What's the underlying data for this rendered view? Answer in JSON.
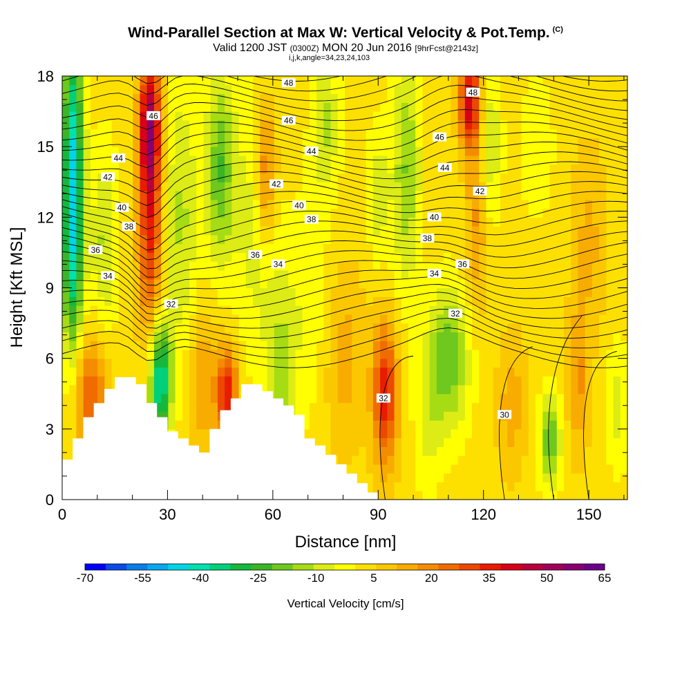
{
  "title": {
    "main": "Wind-Parallel Section at Max W: Vertical Velocity & Pot.Temp.",
    "copyright": "(C)",
    "valid_prefix": "Valid 1200 JST",
    "valid_utc": "(0300Z)",
    "valid_date": "MON 20 Jun 2016",
    "forecast": "[9hrFcst@2143z]",
    "indices": "i,j,k,angle=34,23,24,103"
  },
  "chart_data": {
    "type": "heatmap",
    "xlabel": "Distance [nm]",
    "ylabel": "Height [Kft MSL]",
    "xlim": [
      0,
      161
    ],
    "ylim": [
      0,
      18
    ],
    "x_ticks": [
      0,
      30,
      60,
      90,
      120,
      150
    ],
    "y_ticks": [
      0,
      3,
      6,
      9,
      12,
      15,
      18
    ],
    "colorbar": {
      "title": "Vertical Velocity [cm/s]",
      "tick_labels": [
        "-70",
        "-55",
        "-40",
        "-25",
        "-10",
        "5",
        "20",
        "35",
        "50",
        "65"
      ],
      "colors": [
        "#0000ff",
        "#0c4ae6",
        "#0a7de8",
        "#0aa6ee",
        "#00d4e6",
        "#00e0b0",
        "#00d07a",
        "#16b83c",
        "#3cb428",
        "#6ec81e",
        "#a6dc14",
        "#dcec14",
        "#ffff00",
        "#fde000",
        "#fbc800",
        "#f8ac00",
        "#f48c00",
        "#f06c00",
        "#ec4800",
        "#e81c00",
        "#d80018",
        "#b8003c",
        "#a0005a",
        "#880070",
        "#6c0088"
      ]
    },
    "velocity_updrafts": [
      {
        "x": 25,
        "z": 16,
        "w": 50
      },
      {
        "x": 92,
        "z": 4.5,
        "w": 35
      },
      {
        "x": 116,
        "z": 17,
        "w": 40
      },
      {
        "x": 47,
        "z": 4.5,
        "w": 35
      },
      {
        "x": 58,
        "z": 14,
        "w": 25
      }
    ],
    "velocity_downdrafts": [
      {
        "x": 3,
        "z": 15,
        "w": -40
      },
      {
        "x": 28,
        "z": 5,
        "w": -45
      },
      {
        "x": 45,
        "z": 14,
        "w": -25
      },
      {
        "x": 110,
        "z": 6,
        "w": -25
      },
      {
        "x": 139,
        "z": 2.5,
        "w": -25
      }
    ],
    "contour_labels": [
      {
        "text": "48",
        "x": 64.5,
        "z": 17.7
      },
      {
        "text": "48",
        "x": 117,
        "z": 17.3
      },
      {
        "text": "46",
        "x": 26,
        "z": 16.3
      },
      {
        "text": "46",
        "x": 64.5,
        "z": 16.1
      },
      {
        "text": "46",
        "x": 107.5,
        "z": 15.4
      },
      {
        "text": "44",
        "x": 16,
        "z": 14.5
      },
      {
        "text": "44",
        "x": 71,
        "z": 14.8
      },
      {
        "text": "44",
        "x": 109,
        "z": 14.1
      },
      {
        "text": "42",
        "x": 13,
        "z": 13.7
      },
      {
        "text": "42",
        "x": 61,
        "z": 13.4
      },
      {
        "text": "42",
        "x": 119,
        "z": 13.1
      },
      {
        "text": "40",
        "x": 17,
        "z": 12.4
      },
      {
        "text": "40",
        "x": 67.5,
        "z": 12.5
      },
      {
        "text": "40",
        "x": 106,
        "z": 12.0
      },
      {
        "text": "38",
        "x": 19,
        "z": 11.6
      },
      {
        "text": "38",
        "x": 71,
        "z": 11.9
      },
      {
        "text": "38",
        "x": 104,
        "z": 11.1
      },
      {
        "text": "36",
        "x": 9.5,
        "z": 10.6
      },
      {
        "text": "36",
        "x": 55,
        "z": 10.4
      },
      {
        "text": "36",
        "x": 114,
        "z": 10.0
      },
      {
        "text": "34",
        "x": 13,
        "z": 9.5
      },
      {
        "text": "34",
        "x": 61.5,
        "z": 10.0
      },
      {
        "text": "34",
        "x": 106,
        "z": 9.6
      },
      {
        "text": "32",
        "x": 31,
        "z": 8.3
      },
      {
        "text": "32",
        "x": 112,
        "z": 7.9
      },
      {
        "text": "32",
        "x": 91.5,
        "z": 4.3
      },
      {
        "text": "30",
        "x": 126,
        "z": 3.6
      }
    ]
  }
}
